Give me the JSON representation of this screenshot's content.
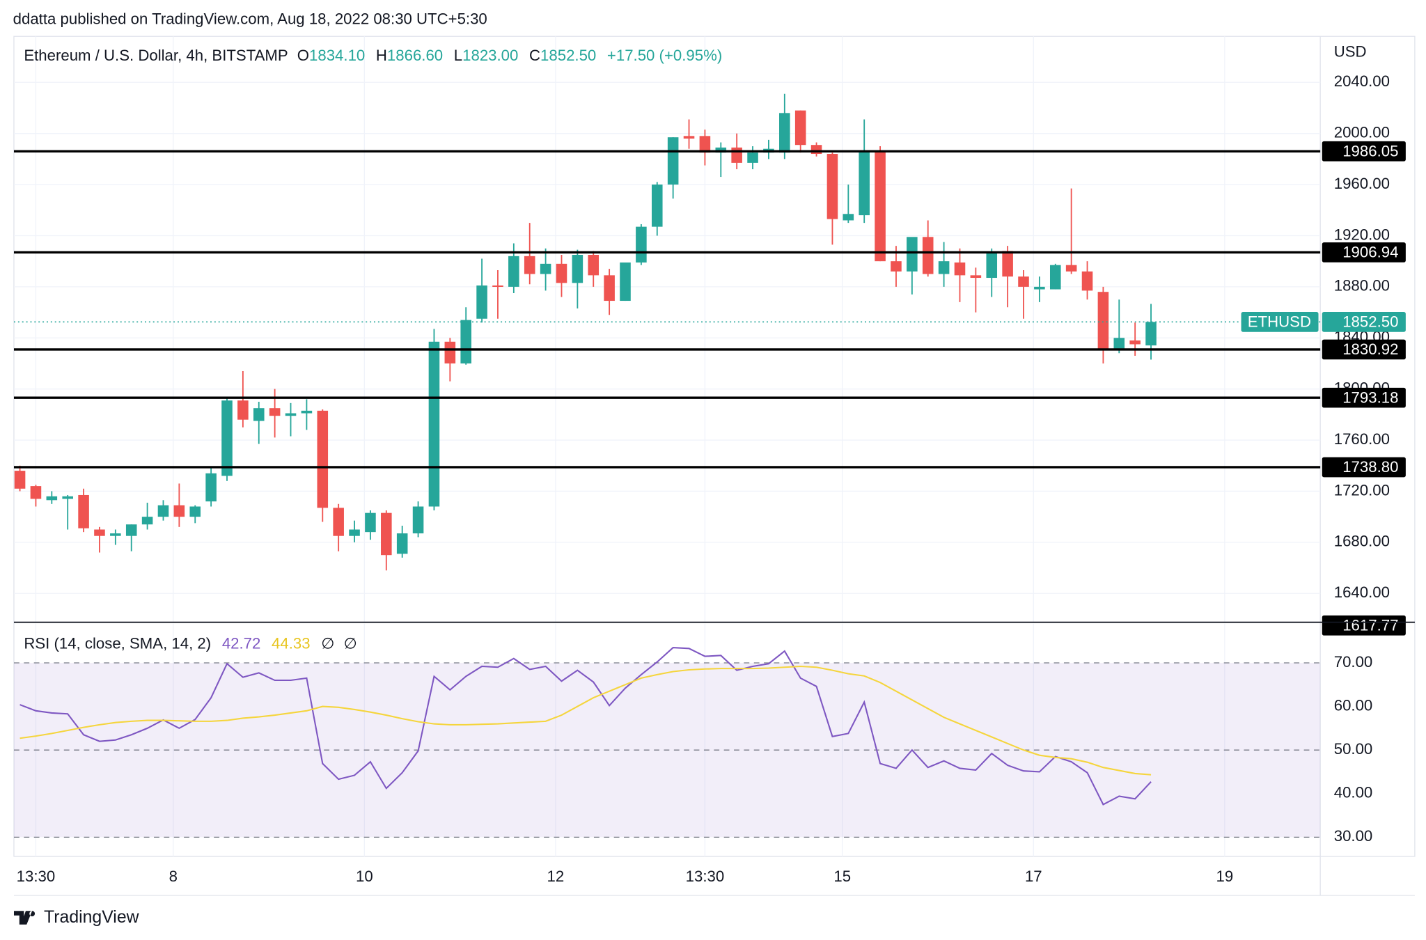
{
  "header": {
    "published": "ddatta published on TradingView.com, Aug 18, 2022 08:30 UTC+5:30",
    "brand": "TradingView"
  },
  "chart_data": [
    {
      "type": "candlestick",
      "title": "Ethereum / U.S. Dollar, 4h, BITSTAMP",
      "legend": [
        {
          "key": "O",
          "text": "1834.10"
        },
        {
          "key": "H",
          "text": "1866.60"
        },
        {
          "key": "L",
          "text": "1823.00"
        },
        {
          "key": "C",
          "text": "1852.50"
        }
      ],
      "change": "+17.50 (+0.95%)",
      "axis_label": "USD",
      "up_color": "#26a69a",
      "down_color": "#ef5350",
      "x": [
        "2022-08-06T09:30",
        "2022-08-06T13:30",
        "2022-08-06T17:30",
        "2022-08-06T21:30",
        "2022-08-07T01:30",
        "2022-08-07T05:30",
        "2022-08-07T09:30",
        "2022-08-07T13:30",
        "2022-08-07T17:30",
        "2022-08-07T21:30",
        "2022-08-08T01:30",
        "2022-08-08T05:30",
        "2022-08-08T09:30",
        "2022-08-08T13:30",
        "2022-08-08T17:30",
        "2022-08-08T21:30",
        "2022-08-09T01:30",
        "2022-08-09T05:30",
        "2022-08-09T09:30",
        "2022-08-09T13:30",
        "2022-08-09T17:30",
        "2022-08-09T21:30",
        "2022-08-10T01:30",
        "2022-08-10T05:30",
        "2022-08-10T09:30",
        "2022-08-10T13:30",
        "2022-08-10T17:30",
        "2022-08-10T21:30",
        "2022-08-11T01:30",
        "2022-08-11T05:30",
        "2022-08-11T09:30",
        "2022-08-11T13:30",
        "2022-08-11T17:30",
        "2022-08-11T21:30",
        "2022-08-12T01:30",
        "2022-08-12T05:30",
        "2022-08-12T09:30",
        "2022-08-12T13:30",
        "2022-08-12T17:30",
        "2022-08-12T21:30",
        "2022-08-13T01:30",
        "2022-08-13T05:30",
        "2022-08-13T09:30",
        "2022-08-13T13:30",
        "2022-08-13T17:30",
        "2022-08-13T21:30",
        "2022-08-14T01:30",
        "2022-08-14T05:30",
        "2022-08-14T09:30",
        "2022-08-14T13:30",
        "2022-08-14T17:30",
        "2022-08-14T21:30",
        "2022-08-15T01:30",
        "2022-08-15T05:30",
        "2022-08-15T09:30",
        "2022-08-15T13:30",
        "2022-08-15T17:30",
        "2022-08-15T21:30",
        "2022-08-16T01:30",
        "2022-08-16T05:30",
        "2022-08-16T09:30",
        "2022-08-16T13:30",
        "2022-08-16T17:30",
        "2022-08-16T21:30",
        "2022-08-17T01:30",
        "2022-08-17T05:30",
        "2022-08-17T09:30",
        "2022-08-17T13:30",
        "2022-08-17T17:30",
        "2022-08-17T21:30",
        "2022-08-18T01:30",
        "2022-08-18T05:30"
      ],
      "open": [
        1736,
        1724,
        1713,
        1714,
        1717,
        1690,
        1685,
        1685,
        1694,
        1700,
        1709,
        1700,
        1712,
        1732,
        1791,
        1775,
        1785,
        1779,
        1781,
        1783,
        1707,
        1685,
        1688,
        1703,
        1671,
        1687,
        1708,
        1837,
        1820,
        1855,
        1881,
        1880,
        1904,
        1890,
        1898,
        1883,
        1905,
        1889,
        1869,
        1899,
        1927,
        1960,
        1998,
        1998,
        1985,
        1989,
        1977,
        1985,
        1985,
        2018,
        1991,
        1984,
        1932,
        1936,
        1986,
        1900,
        1892,
        1919,
        1890,
        1899,
        1889,
        1887,
        1908,
        1888,
        1878,
        1878,
        1897,
        1892,
        1876,
        1831,
        1838,
        1834.1
      ],
      "high": [
        1740,
        1725,
        1720,
        1717,
        1722,
        1692,
        1690,
        1694,
        1711,
        1713,
        1726,
        1709,
        1738,
        1793,
        1814,
        1790,
        1800,
        1789,
        1792,
        1784,
        1710,
        1697,
        1705,
        1705,
        1693,
        1712,
        1847,
        1840,
        1864,
        1902,
        1893,
        1914,
        1930,
        1910,
        1905,
        1909,
        1908,
        1894,
        1898,
        1929,
        1962,
        1997,
        2011,
        2003,
        1993,
        2000,
        1990,
        1995,
        2031,
        2018,
        1993,
        1985,
        1960,
        2011,
        1990,
        1912,
        1915,
        1932,
        1915,
        1910,
        1895,
        1910,
        1912,
        1893,
        1888,
        1898,
        1957,
        1900,
        1880,
        1870,
        1852,
        1866.6
      ],
      "low": [
        1720,
        1708,
        1710,
        1690,
        1688,
        1672,
        1678,
        1673,
        1690,
        1697,
        1692,
        1695,
        1708,
        1728,
        1770,
        1757,
        1762,
        1763,
        1768,
        1696,
        1673,
        1680,
        1682,
        1658,
        1668,
        1684,
        1705,
        1806,
        1819,
        1852,
        1855,
        1875,
        1882,
        1877,
        1872,
        1863,
        1880,
        1858,
        1869,
        1897,
        1920,
        1949,
        1988,
        1975,
        1966,
        1972,
        1972,
        1980,
        1980,
        1985,
        1982,
        1913,
        1930,
        1930,
        1900,
        1880,
        1874,
        1888,
        1880,
        1868,
        1860,
        1872,
        1864,
        1855,
        1868,
        1878,
        1890,
        1870,
        1820,
        1828,
        1826,
        1823
      ],
      "close": [
        1722,
        1714,
        1716,
        1716,
        1691,
        1685,
        1687,
        1694,
        1700,
        1709,
        1700,
        1708,
        1734,
        1791,
        1776,
        1785,
        1779,
        1781,
        1783,
        1707,
        1685,
        1690,
        1703,
        1670,
        1687,
        1708,
        1837,
        1820,
        1854,
        1881,
        1880,
        1904,
        1890,
        1898,
        1883,
        1905,
        1889,
        1869,
        1899,
        1927,
        1960,
        1997,
        1996,
        1985,
        1989,
        1977,
        1985,
        1988,
        2016,
        1991,
        1984,
        1933,
        1937,
        1986,
        1900,
        1892,
        1919,
        1890,
        1900,
        1889,
        1887,
        1907,
        1888,
        1880,
        1880,
        1897,
        1892,
        1877,
        1831,
        1840,
        1835,
        1852.5
      ],
      "xlim": [
        "2022-08-06T08:00",
        "2022-08-20T00:00"
      ],
      "xticks": [
        {
          "value": "2022-08-06T13:30",
          "label": "13:30"
        },
        {
          "value": "2022-08-08T00:00",
          "label": "8"
        },
        {
          "value": "2022-08-10T00:00",
          "label": "10"
        },
        {
          "value": "2022-08-12T00:00",
          "label": "12"
        },
        {
          "value": "2022-08-13T13:30",
          "label": "13:30"
        },
        {
          "value": "2022-08-15T00:00",
          "label": "15"
        },
        {
          "value": "2022-08-17T00:00",
          "label": "17"
        },
        {
          "value": "2022-08-19T00:00",
          "label": "19"
        }
      ],
      "ylim": [
        1617.77,
        2076
      ],
      "yticks": [
        {
          "value": 1640,
          "label": "1640.00"
        },
        {
          "value": 1680,
          "label": "1680.00"
        },
        {
          "value": 1720,
          "label": "1720.00"
        },
        {
          "value": 1760,
          "label": "1760.00"
        },
        {
          "value": 1800,
          "label": "1800.00"
        },
        {
          "value": 1840,
          "label": "1840.00"
        },
        {
          "value": 1880,
          "label": "1880.00"
        },
        {
          "value": 1920,
          "label": "1920.00"
        },
        {
          "value": 1960,
          "label": "1960.00"
        },
        {
          "value": 2000,
          "label": "2000.00"
        },
        {
          "value": 2040,
          "label": "2040.00"
        }
      ],
      "bottom_label": {
        "value": 1617.77,
        "label": "1617.77"
      },
      "levels": [
        {
          "value": 1986.05,
          "label": "1986.05"
        },
        {
          "value": 1906.94,
          "label": "1906.94"
        },
        {
          "value": 1830.92,
          "label": "1830.92"
        },
        {
          "value": 1793.18,
          "label": "1793.18"
        },
        {
          "value": 1738.8,
          "label": "1738.80"
        }
      ],
      "last": {
        "name": "ETHUSD",
        "value": 1852.5,
        "label": "1852.50"
      },
      "grid": true
    },
    {
      "type": "line",
      "title": "RSI (14, close, SMA, 14, 2)",
      "status": [
        "∅",
        "∅"
      ],
      "x": [
        "2022-08-06T09:30",
        "2022-08-06T13:30",
        "2022-08-06T17:30",
        "2022-08-06T21:30",
        "2022-08-07T01:30",
        "2022-08-07T05:30",
        "2022-08-07T09:30",
        "2022-08-07T13:30",
        "2022-08-07T17:30",
        "2022-08-07T21:30",
        "2022-08-08T01:30",
        "2022-08-08T05:30",
        "2022-08-08T09:30",
        "2022-08-08T13:30",
        "2022-08-08T17:30",
        "2022-08-08T21:30",
        "2022-08-09T01:30",
        "2022-08-09T05:30",
        "2022-08-09T09:30",
        "2022-08-09T13:30",
        "2022-08-09T17:30",
        "2022-08-09T21:30",
        "2022-08-10T01:30",
        "2022-08-10T05:30",
        "2022-08-10T09:30",
        "2022-08-10T13:30",
        "2022-08-10T17:30",
        "2022-08-10T21:30",
        "2022-08-11T01:30",
        "2022-08-11T05:30",
        "2022-08-11T09:30",
        "2022-08-11T13:30",
        "2022-08-11T17:30",
        "2022-08-11T21:30",
        "2022-08-12T01:30",
        "2022-08-12T05:30",
        "2022-08-12T09:30",
        "2022-08-12T13:30",
        "2022-08-12T17:30",
        "2022-08-12T21:30",
        "2022-08-13T01:30",
        "2022-08-13T05:30",
        "2022-08-13T09:30",
        "2022-08-13T13:30",
        "2022-08-13T17:30",
        "2022-08-13T21:30",
        "2022-08-14T01:30",
        "2022-08-14T05:30",
        "2022-08-14T09:30",
        "2022-08-14T13:30",
        "2022-08-14T17:30",
        "2022-08-14T21:30",
        "2022-08-15T01:30",
        "2022-08-15T05:30",
        "2022-08-15T09:30",
        "2022-08-15T13:30",
        "2022-08-15T17:30",
        "2022-08-15T21:30",
        "2022-08-16T01:30",
        "2022-08-16T05:30",
        "2022-08-16T09:30",
        "2022-08-16T13:30",
        "2022-08-16T17:30",
        "2022-08-16T21:30",
        "2022-08-17T01:30",
        "2022-08-17T05:30",
        "2022-08-17T09:30",
        "2022-08-17T13:30",
        "2022-08-17T17:30",
        "2022-08-17T21:30",
        "2022-08-18T01:30",
        "2022-08-18T05:30"
      ],
      "series": [
        {
          "color": "#7e57c2",
          "last_label": "42.72",
          "values": [
            60.4,
            59,
            58.5,
            58.3,
            53.5,
            52,
            52.3,
            53.5,
            55,
            56.9,
            55,
            57,
            62,
            69.8,
            66.7,
            67.7,
            66,
            66,
            66.5,
            46.9,
            43.3,
            44.2,
            47.3,
            41.2,
            44.8,
            49.8,
            66.9,
            63.8,
            66.9,
            69.2,
            69,
            71,
            68.5,
            69.2,
            65.8,
            68.3,
            65.6,
            60.2,
            64.2,
            67.3,
            70.2,
            73.5,
            73.3,
            71.5,
            71.7,
            68.3,
            69.2,
            69.8,
            72.7,
            66.5,
            64.6,
            53.1,
            53.8,
            61,
            46.9,
            45.8,
            50,
            46,
            47.5,
            45.8,
            45.4,
            49.2,
            46.5,
            45.2,
            45,
            48.5,
            47.3,
            44.8,
            37.5,
            39.4,
            38.8,
            42.72
          ]
        },
        {
          "color": "#f5d53d",
          "last_label": "44.33",
          "values": [
            52.7,
            53.2,
            53.8,
            54.5,
            55.2,
            55.8,
            56.3,
            56.6,
            56.8,
            56.8,
            56.7,
            56.6,
            56.6,
            56.8,
            57.3,
            57.6,
            58,
            58.5,
            59,
            60,
            59.8,
            59.3,
            58.7,
            58,
            57.2,
            56.5,
            56,
            55.8,
            55.8,
            55.9,
            56,
            56.2,
            56.4,
            56.6,
            58,
            60,
            62,
            63.5,
            65,
            66.5,
            67.3,
            68,
            68.4,
            68.6,
            68.7,
            68.7,
            68.7,
            68.8,
            69,
            69.2,
            69,
            68.3,
            67.5,
            67,
            65.5,
            63.5,
            61.5,
            59.5,
            57.5,
            56,
            54.5,
            53,
            51.5,
            50,
            48.8,
            48.3,
            48,
            47.2,
            46,
            45.3,
            44.6,
            44.33
          ]
        }
      ],
      "xlim": [
        "2022-08-06T08:00",
        "2022-08-20T00:00"
      ],
      "ylim": [
        25.6,
        79
      ],
      "yticks": [
        {
          "value": 30,
          "label": "30.00"
        },
        {
          "value": 40,
          "label": "40.00"
        },
        {
          "value": 50,
          "label": "50.00"
        },
        {
          "value": 60,
          "label": "60.00"
        },
        {
          "value": 70,
          "label": "70.00"
        }
      ],
      "levels": [
        70,
        50,
        30
      ],
      "band_color": "#7e57c2"
    }
  ]
}
